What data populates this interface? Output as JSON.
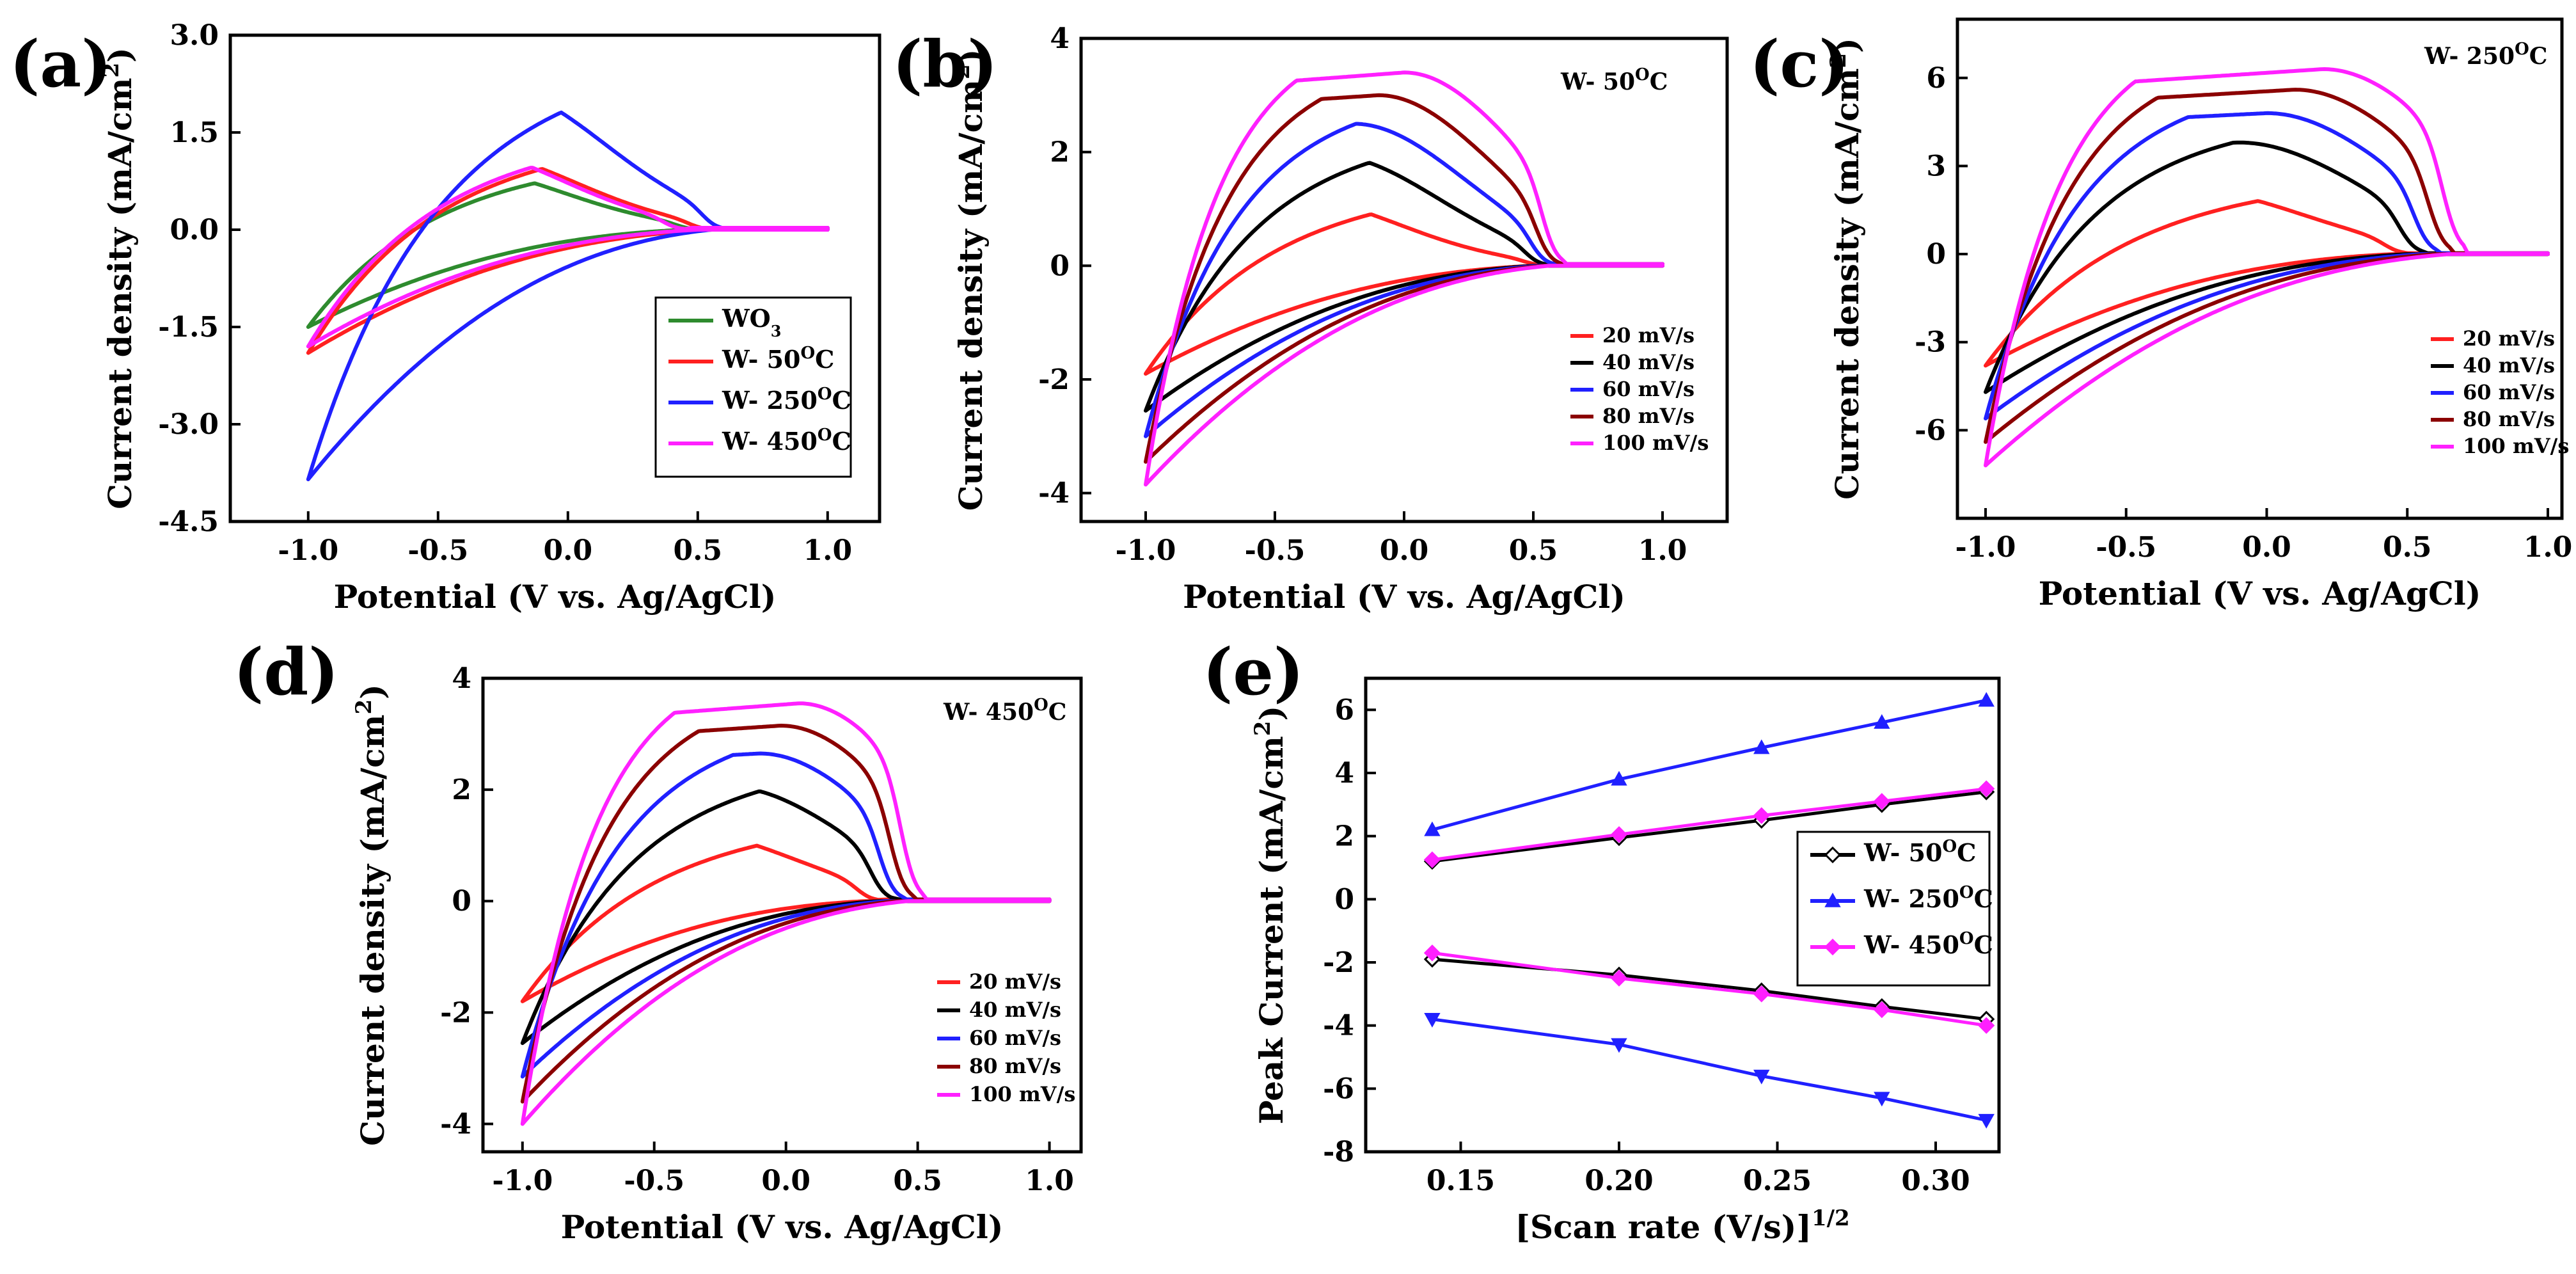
{
  "colors": {
    "WO3": "#2e8b2e",
    "W-50": "#ff2020",
    "W-250": "#2020ff",
    "W-450": "#ff20ff",
    "20": "#ff2020",
    "40": "#000000",
    "60": "#2020ff",
    "80": "#8b0000",
    "100": "#ff20ff"
  },
  "chart_data": [
    {
      "id": "a",
      "type": "line",
      "panel_label": "(a)",
      "xlabel": "Potential (V vs. Ag/AgCl)",
      "ylabel": "Current density (mA/cm",
      "ylabel_sup": "2",
      "ylabel_end": ")",
      "xlim": [
        -1.3,
        1.2
      ],
      "ylim": [
        -4.5,
        3.0
      ],
      "xticks": [
        -1.0,
        -0.5,
        0.0,
        0.5,
        1.0
      ],
      "xtick_labels": [
        "-1.0",
        "-0.5",
        "0.0",
        "0.5",
        "1.0"
      ],
      "yticks": [
        -4.5,
        -3.0,
        -1.5,
        0.0,
        1.5,
        3.0
      ],
      "ytick_labels": [
        "-4.5",
        "-3.0",
        "-1.5",
        "0.0",
        "1.5",
        "3.0"
      ],
      "legend": [
        {
          "text": "WO",
          "sub": "3",
          "sup": "",
          "suffix": "",
          "color": "WO3"
        },
        {
          "text": "W- 50",
          "sub": "",
          "sup": "O",
          "suffix": "C",
          "color": "W-50"
        },
        {
          "text": "W- 250",
          "sub": "",
          "sup": "O",
          "suffix": "C",
          "color": "W-250"
        },
        {
          "text": "W- 450",
          "sub": "",
          "sup": "O",
          "suffix": "C",
          "color": "W-450"
        }
      ],
      "series": [
        {
          "name": "WO3",
          "color": "WO3",
          "xi": 0.45,
          "i_lo": -1.5,
          "c0": 0.45,
          "e": 0.5,
          "d0": 1.0,
          "pa": 0.95,
          "pc": -0.45,
          "ap": 2.0
        },
        {
          "name": "W-50",
          "color": "W-50",
          "xi": 0.5,
          "i_lo": -1.9,
          "c0": 0.55,
          "e": 0.5,
          "d0": 1.0,
          "pa": 1.2,
          "pc": -0.4,
          "ap": 2.0
        },
        {
          "name": "W-250",
          "color": "W-250",
          "xi": 0.55,
          "i_lo": -3.85,
          "c0": 0.55,
          "e": 0.75,
          "d0": 1.0,
          "pa": 2.2,
          "pc": -0.3,
          "ap": 2.0
        },
        {
          "name": "W-450",
          "color": "W-450",
          "xi": 0.4,
          "i_lo": -1.8,
          "c0": 0.5,
          "e": 0.5,
          "d0": 1.0,
          "pa": 1.25,
          "pc": -0.45,
          "ap": 2.0
        }
      ]
    },
    {
      "id": "b",
      "type": "line",
      "panel_label": "(b)",
      "sample_label": "W- 50",
      "sample_sup": "O",
      "sample_suffix": "C",
      "xlabel": "Potential (V vs. Ag/AgCl)",
      "ylabel": "Current density (mA/cm",
      "ylabel_sup": "2",
      "ylabel_end": ")",
      "xlim": [
        -1.25,
        1.25
      ],
      "ylim": [
        -4.5,
        4.0
      ],
      "xticks": [
        -1.0,
        -0.5,
        0.0,
        0.5,
        1.0
      ],
      "xtick_labels": [
        "-1.0",
        "-0.5",
        "0.0",
        "0.5",
        "1.0"
      ],
      "yticks": [
        -4,
        -2,
        0,
        2,
        4
      ],
      "ytick_labels": [
        "-4",
        "-2",
        "0",
        "2",
        "4"
      ],
      "legend": [
        {
          "text": "20 mV/s",
          "color": "20"
        },
        {
          "text": "40 mV/s",
          "color": "40"
        },
        {
          "text": "60 mV/s",
          "color": "60"
        },
        {
          "text": "80 mV/s",
          "color": "80"
        },
        {
          "text": "100 mV/s",
          "color": "100"
        }
      ],
      "series": [
        {
          "name": "20 mV/s",
          "color": "20",
          "xi": 0.5,
          "i_lo": -1.9,
          "c0": 0.5,
          "e": 0.5,
          "d0": 1.0,
          "pa": 1.2,
          "pc": -0.45,
          "ap": 2.0
        },
        {
          "name": "40 mV/s",
          "color": "40",
          "xi": 0.5,
          "i_lo": -2.55,
          "c0": 0.5,
          "e": 0.6,
          "d0": 1.0,
          "pa": 1.95,
          "pc": -0.3,
          "ap": 2.4
        },
        {
          "name": "60 mV/s",
          "color": "60",
          "xi": 0.52,
          "i_lo": -3.0,
          "c0": 0.52,
          "e": 0.7,
          "d0": 1.0,
          "pa": 2.5,
          "pc": -0.2,
          "ap": 2.8
        },
        {
          "name": "80 mV/s",
          "color": "80",
          "xi": 0.54,
          "i_lo": -3.45,
          "c0": 0.54,
          "e": 0.8,
          "d0": 1.0,
          "pa": 3.0,
          "pc": -0.1,
          "ap": 3.2
        },
        {
          "name": "100 mV/s",
          "color": "100",
          "xi": 0.56,
          "i_lo": -3.85,
          "c0": 0.56,
          "e": 0.9,
          "d0": 1.0,
          "pa": 3.4,
          "pc": 0.0,
          "ap": 3.6
        }
      ]
    },
    {
      "id": "c",
      "type": "line",
      "panel_label": "(c)",
      "sample_label": "W- 250",
      "sample_sup": "O",
      "sample_suffix": "C",
      "xlabel": "Potential (V vs. Ag/AgCl)",
      "ylabel": "Current density (mA/cm",
      "ylabel_sup": "2",
      "ylabel_end": ")",
      "xlim": [
        -1.1,
        1.05
      ],
      "ylim": [
        -9.0,
        8.0
      ],
      "xticks": [
        -1.0,
        -0.5,
        0.0,
        0.5,
        1.0
      ],
      "xtick_labels": [
        "-1.0",
        "-0.5",
        "0.0",
        "0.5",
        "1.0"
      ],
      "yticks": [
        -6,
        -3,
        0,
        3,
        6
      ],
      "ytick_labels": [
        "-6",
        "-3",
        "0",
        "3",
        "6"
      ],
      "legend": [
        {
          "text": "20 mV/s",
          "color": "20"
        },
        {
          "text": "40 mV/s",
          "color": "40"
        },
        {
          "text": "60 mV/s",
          "color": "60"
        },
        {
          "text": "80 mV/s",
          "color": "80"
        },
        {
          "text": "100 mV/s",
          "color": "100"
        }
      ],
      "series": [
        {
          "name": "20 mV/s",
          "color": "20",
          "xi": 0.45,
          "i_lo": -3.8,
          "c0": 0.45,
          "e": 0.55,
          "d0": 1.0,
          "pa": 2.2,
          "pc": -0.3,
          "ap": 2.0
        },
        {
          "name": "40 mV/s",
          "color": "40",
          "xi": 0.5,
          "i_lo": -4.7,
          "c0": 0.5,
          "e": 0.8,
          "d0": 1.0,
          "pa": 3.8,
          "pc": -0.1,
          "ap": 2.6
        },
        {
          "name": "60 mV/s",
          "color": "60",
          "xi": 0.55,
          "i_lo": -5.6,
          "c0": 0.55,
          "e": 1.0,
          "d0": 1.0,
          "pa": 4.8,
          "pc": 0.0,
          "ap": 3.0
        },
        {
          "name": "80 mV/s",
          "color": "80",
          "xi": 0.6,
          "i_lo": -6.4,
          "c0": 0.6,
          "e": 1.15,
          "d0": 1.0,
          "pa": 5.6,
          "pc": 0.1,
          "ap": 3.4
        },
        {
          "name": "100 mV/s",
          "color": "100",
          "xi": 0.65,
          "i_lo": -7.2,
          "c0": 0.65,
          "e": 1.3,
          "d0": 1.0,
          "pa": 6.3,
          "pc": 0.2,
          "ap": 3.8
        }
      ]
    },
    {
      "id": "d",
      "type": "line",
      "panel_label": "(d)",
      "sample_label": "W- 450",
      "sample_sup": "O",
      "sample_suffix": "C",
      "xlabel": "Potential (V vs. Ag/AgCl)",
      "ylabel": "Current density (mA/cm",
      "ylabel_sup": "2",
      "ylabel_end": ")",
      "xlim": [
        -1.15,
        1.12
      ],
      "ylim": [
        -4.5,
        4.0
      ],
      "xticks": [
        -1.0,
        -0.5,
        0.0,
        0.5,
        1.0
      ],
      "xtick_labels": [
        "-1.0",
        "-0.5",
        "0.0",
        "0.5",
        "1.0"
      ],
      "yticks": [
        -4,
        -2,
        0,
        2,
        4
      ],
      "ytick_labels": [
        "-4",
        "-2",
        "0",
        "2",
        "4"
      ],
      "legend": [
        {
          "text": "20 mV/s",
          "color": "20"
        },
        {
          "text": "40 mV/s",
          "color": "40"
        },
        {
          "text": "60 mV/s",
          "color": "60"
        },
        {
          "text": "80 mV/s",
          "color": "80"
        },
        {
          "text": "100 mV/s",
          "color": "100"
        }
      ],
      "series": [
        {
          "name": "20 mV/s",
          "color": "20",
          "xi": 0.3,
          "i_lo": -1.8,
          "c0": 0.3,
          "e": 0.5,
          "d0": 1.0,
          "pa": 1.25,
          "pc": -0.4,
          "ap": 2.0
        },
        {
          "name": "40 mV/s",
          "color": "40",
          "xi": 0.35,
          "i_lo": -2.55,
          "c0": 0.35,
          "e": 0.6,
          "d0": 1.0,
          "pa": 2.05,
          "pc": -0.22,
          "ap": 2.4
        },
        {
          "name": "60 mV/s",
          "color": "60",
          "xi": 0.38,
          "i_lo": -3.15,
          "c0": 0.38,
          "e": 0.7,
          "d0": 1.0,
          "pa": 2.65,
          "pc": -0.1,
          "ap": 2.8
        },
        {
          "name": "80 mV/s",
          "color": "80",
          "xi": 0.42,
          "i_lo": -3.6,
          "c0": 0.42,
          "e": 0.8,
          "d0": 1.0,
          "pa": 3.15,
          "pc": -0.02,
          "ap": 3.2
        },
        {
          "name": "100 mV/s",
          "color": "100",
          "xi": 0.46,
          "i_lo": -4.0,
          "c0": 0.46,
          "e": 0.9,
          "d0": 1.0,
          "pa": 3.55,
          "pc": 0.05,
          "ap": 3.6
        }
      ]
    },
    {
      "id": "e",
      "type": "line",
      "panel_label": "(e)",
      "xlabel": "[Scan rate (V/s)]",
      "xlabel_sup": "1/2",
      "ylabel": "Peak Current (mA/cm",
      "ylabel_sup": "2",
      "ylabel_end": ")",
      "xlim": [
        0.12,
        0.32
      ],
      "ylim": [
        -8,
        7
      ],
      "xticks": [
        0.15,
        0.2,
        0.25,
        0.3
      ],
      "xtick_labels": [
        "0.15",
        "0.20",
        "0.25",
        "0.30"
      ],
      "yticks": [
        -8,
        -6,
        -4,
        -2,
        0,
        2,
        4,
        6
      ],
      "ytick_labels": [
        "-8",
        "-6",
        "-4",
        "-2",
        "0",
        "2",
        "4",
        "6"
      ],
      "x": [
        0.141,
        0.2,
        0.245,
        0.283,
        0.316
      ],
      "legend": [
        {
          "text": "W- 50",
          "sup": "O",
          "suffix": "C",
          "color": "W-50-black",
          "marker": "diamond-open"
        },
        {
          "text": "W- 250",
          "sup": "O",
          "suffix": "C",
          "color": "W-250",
          "marker": "triangle-up"
        },
        {
          "text": "W- 450",
          "sup": "O",
          "suffix": "C",
          "color": "W-450",
          "marker": "diamond"
        }
      ],
      "series": [
        {
          "name": "W- 50°C anodic",
          "color": "#000000",
          "marker": "diamond-open",
          "values": [
            1.2,
            1.95,
            2.5,
            3.0,
            3.4
          ]
        },
        {
          "name": "W- 50°C cathodic",
          "color": "#000000",
          "marker": "diamond-open",
          "values": [
            -1.9,
            -2.4,
            -2.9,
            -3.4,
            -3.8
          ]
        },
        {
          "name": "W- 250°C anodic",
          "color": "#2020ff",
          "marker": "triangle-up",
          "values": [
            2.2,
            3.8,
            4.8,
            5.6,
            6.3
          ]
        },
        {
          "name": "W- 250°C cathodic",
          "color": "#2020ff",
          "marker": "triangle-down",
          "values": [
            -3.8,
            -4.6,
            -5.6,
            -6.3,
            -7.0
          ]
        },
        {
          "name": "W- 450°C anodic",
          "color": "#ff20ff",
          "marker": "diamond",
          "values": [
            1.25,
            2.05,
            2.65,
            3.1,
            3.5
          ]
        },
        {
          "name": "W- 450°C cathodic",
          "color": "#ff20ff",
          "marker": "diamond",
          "values": [
            -1.7,
            -2.5,
            -3.0,
            -3.5,
            -4.0
          ]
        }
      ]
    }
  ]
}
